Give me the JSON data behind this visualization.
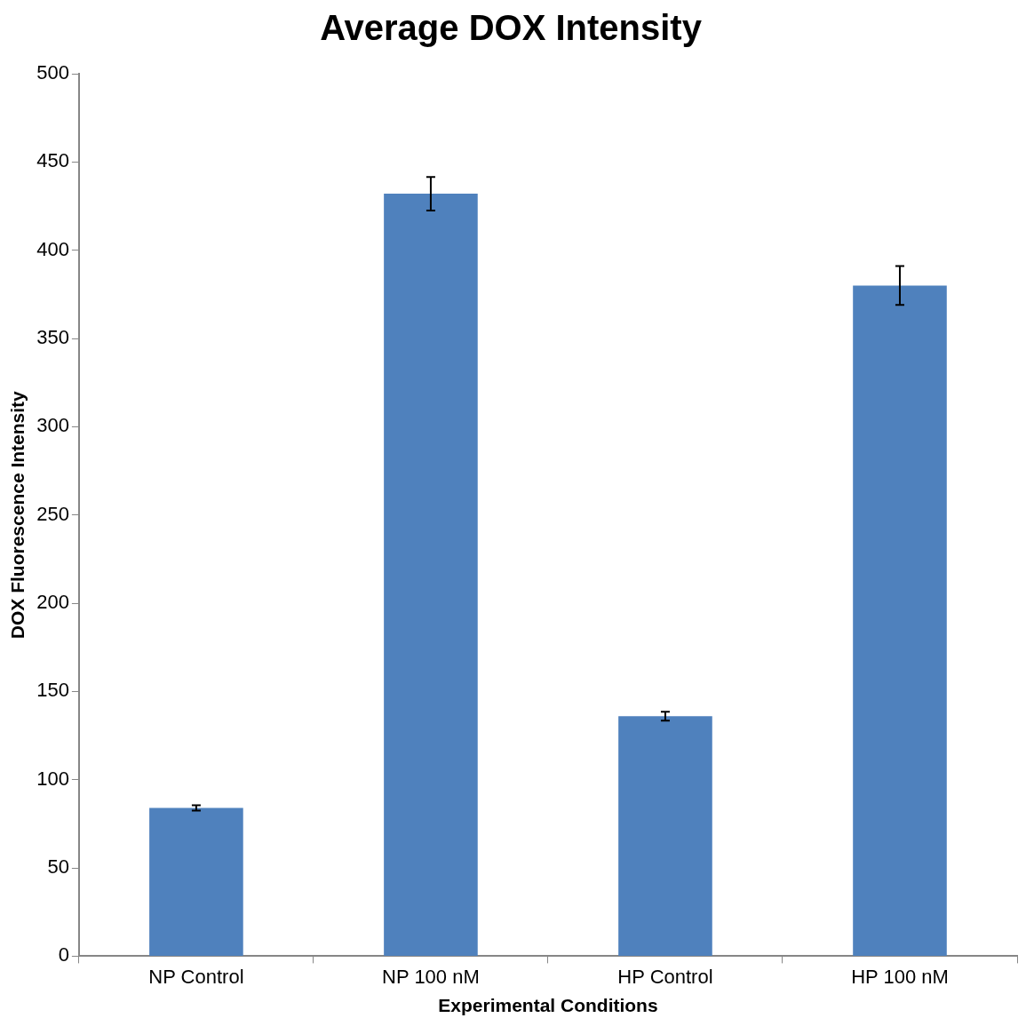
{
  "chart_data": {
    "type": "bar",
    "title": "Average DOX Intensity",
    "xlabel": "Experimental Conditions",
    "ylabel": "DOX Fluorescence Intensity",
    "categories": [
      "NP Control",
      "NP 100 nM",
      "HP Control",
      "HP 100 nM"
    ],
    "values": [
      84,
      432,
      136,
      380
    ],
    "errors": [
      1.5,
      9.5,
      2.5,
      11
    ],
    "color": "#4f81bd",
    "ylim": [
      0,
      500
    ],
    "yticks": [
      0,
      50,
      100,
      150,
      200,
      250,
      300,
      350,
      400,
      450,
      500
    ],
    "grid": false,
    "legend": false
  }
}
